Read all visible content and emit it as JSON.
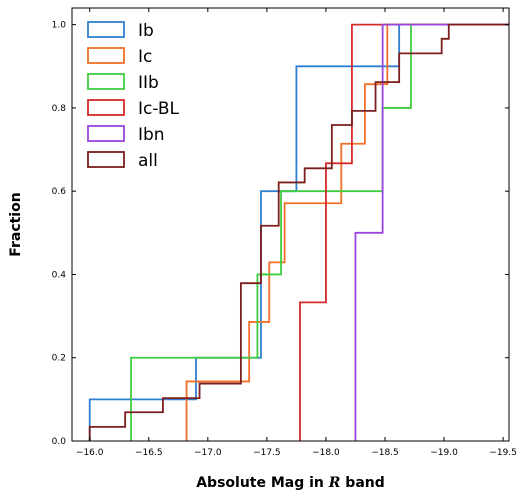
{
  "chart_data": {
    "type": "line",
    "step": "post",
    "xlabel_text": "Absolute Mag in ",
    "xlabel_var": "R",
    "xlabel_suffix": " band",
    "ylabel": "Fraction",
    "xlim": [
      -15.85,
      -19.55
    ],
    "ylim": [
      0.0,
      1.04
    ],
    "x_inverted": true,
    "xticks": [
      -16.0,
      -16.5,
      -17.0,
      -17.5,
      -18.0,
      -18.5,
      -19.0,
      -19.5
    ],
    "xtick_labels": [
      "−16.0",
      "−16.5",
      "−17.0",
      "−17.5",
      "−18.0",
      "−18.5",
      "−19.0",
      "−19.5"
    ],
    "yticks": [
      0.0,
      0.2,
      0.4,
      0.6,
      0.8,
      1.0
    ],
    "ytick_labels": [
      "0.0",
      "0.2",
      "0.4",
      "0.6",
      "0.8",
      "1.0"
    ],
    "legend_position": "upper-left",
    "series": [
      {
        "name": "Ib",
        "color": "#2f7fd0",
        "x": [
          -16.0,
          -16.9,
          -17.45,
          -17.75,
          -18.62,
          -19.55
        ],
        "y": [
          0.1,
          0.2,
          0.6,
          0.9,
          1.0,
          1.0
        ]
      },
      {
        "name": "Ic",
        "color": "#f07028",
        "x": [
          -16.82,
          -17.35,
          -17.52,
          -17.65,
          -17.92,
          -18.13,
          -18.33,
          -18.42,
          -18.52,
          -19.55
        ],
        "y": [
          0.143,
          0.286,
          0.429,
          0.571,
          0.571,
          0.714,
          0.857,
          0.857,
          1.0,
          1.0
        ]
      },
      {
        "name": "IIb",
        "color": "#3fcc3f",
        "x": [
          -16.35,
          -17.42,
          -17.62,
          -18.48,
          -18.72,
          -19.55
        ],
        "y": [
          0.2,
          0.4,
          0.6,
          0.8,
          1.0,
          1.0
        ]
      },
      {
        "name": "Ic-BL",
        "color": "#d42a2a",
        "x": [
          -17.78,
          -18.0,
          -18.22,
          -19.55
        ],
        "y": [
          0.333,
          0.667,
          1.0,
          1.0
        ]
      },
      {
        "name": "Ibn",
        "color": "#9a45de",
        "x": [
          -18.25,
          -18.48,
          -19.55
        ],
        "y": [
          0.5,
          1.0,
          1.0
        ]
      },
      {
        "name": "all",
        "color": "#7b1f1f",
        "x": [
          -16.0,
          -16.3,
          -16.62,
          -16.93,
          -17.28,
          -17.45,
          -17.6,
          -17.82,
          -17.9,
          -18.05,
          -18.22,
          -18.42,
          -18.62,
          -18.98,
          -19.04,
          -19.55
        ],
        "y": [
          0.034,
          0.069,
          0.103,
          0.138,
          0.379,
          0.517,
          0.621,
          0.655,
          0.655,
          0.759,
          0.793,
          0.862,
          0.931,
          0.966,
          1.0,
          1.0
        ]
      }
    ]
  }
}
